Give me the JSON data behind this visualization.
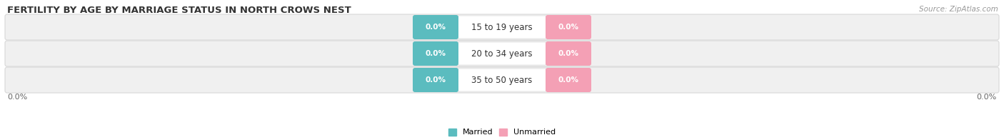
{
  "title": "FERTILITY BY AGE BY MARRIAGE STATUS IN NORTH CROWS NEST",
  "source_text": "Source: ZipAtlas.com",
  "categories": [
    "15 to 19 years",
    "20 to 34 years",
    "35 to 50 years"
  ],
  "married_values": [
    "0.0%",
    "0.0%",
    "0.0%"
  ],
  "unmarried_values": [
    "0.0%",
    "0.0%",
    "0.0%"
  ],
  "married_color": "#5bbcbf",
  "unmarried_color": "#f4a0b5",
  "bar_bg_color": "#f0f0f0",
  "bar_border_color": "#d8d8d8",
  "label_box_color": "#ffffff",
  "left_axis_label": "0.0%",
  "right_axis_label": "0.0%",
  "legend_married": "Married",
  "legend_unmarried": "Unmarried",
  "title_fontsize": 9.5,
  "source_fontsize": 7.5,
  "axis_label_fontsize": 8,
  "category_fontsize": 8.5,
  "value_fontsize": 7.5,
  "legend_fontsize": 8
}
